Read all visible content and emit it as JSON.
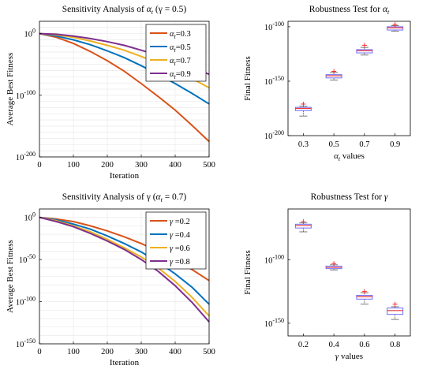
{
  "figure": {
    "colors": {
      "orange": "#d95319",
      "blue": "#0072bd",
      "yellow": "#edb120",
      "purple": "#7e2f8e",
      "box": "#6f6fff",
      "median": "#e8353f",
      "outlier": "#ff2a2a",
      "whisker": "#555555"
    }
  },
  "chart_data": [
    {
      "type": "line",
      "title_prefix": "Sensitivity Analysis of ",
      "title_symbol": "α",
      "title_sub": "t",
      "title_suffix": " (γ = 0.5)",
      "xlabel": "Iteration",
      "ylabel": "Average Best Fitness",
      "xlim": [
        0,
        500
      ],
      "xticks": [
        0,
        100,
        200,
        300,
        400,
        500
      ],
      "ylog": true,
      "ylim_exp": [
        -200,
        20
      ],
      "yticks_exp": [
        0,
        -100,
        -200
      ],
      "grid": true,
      "legend_position": "top-right",
      "x": [
        0,
        50,
        100,
        150,
        200,
        250,
        300,
        350,
        400,
        450,
        500
      ],
      "series": [
        {
          "symbol": "α",
          "sub": "t",
          "value": "=0.3",
          "color_key": "orange",
          "log10_values": [
            0,
            -6,
            -16,
            -29,
            -44,
            -61,
            -81,
            -102,
            -124,
            -149,
            -175
          ]
        },
        {
          "symbol": "α",
          "sub": "t",
          "value": "=0.5",
          "color_key": "blue",
          "log10_values": [
            0,
            -4,
            -10,
            -18,
            -28,
            -39,
            -52,
            -66,
            -81,
            -97,
            -114
          ]
        },
        {
          "symbol": "α",
          "sub": "t",
          "value": "=0.7",
          "color_key": "yellow",
          "log10_values": [
            0,
            -2,
            -6,
            -12,
            -19,
            -27,
            -37,
            -48,
            -60,
            -73,
            -88
          ]
        },
        {
          "symbol": "α",
          "sub": "t",
          "value": "=0.9",
          "color_key": "purple",
          "log10_values": [
            0,
            -1,
            -4,
            -8,
            -13,
            -19,
            -27,
            -35,
            -44,
            -55,
            -66
          ]
        }
      ]
    },
    {
      "type": "box",
      "title_prefix": "Robustness Test for ",
      "title_symbol": "α",
      "title_sub": "t",
      "title_suffix": "",
      "xlabel_symbol": "α",
      "xlabel_sub": "t",
      "xlabel_suffix": " values",
      "ylabel": "Final Fitness",
      "ylog": true,
      "ylim_exp": [
        -200,
        -95
      ],
      "yticks_exp": [
        -100,
        -150,
        -200
      ],
      "categories": [
        "0.3",
        "0.5",
        "0.7",
        "0.9"
      ],
      "boxes": [
        {
          "median": -175,
          "q1": -177,
          "q3": -174,
          "wlo": -182,
          "whi": -173,
          "outliers": [
            -171
          ]
        },
        {
          "median": -145,
          "q1": -147,
          "q3": -144,
          "wlo": -149,
          "whi": -142,
          "outliers": [
            -141
          ]
        },
        {
          "median": -122,
          "q1": -124,
          "q3": -121,
          "wlo": -126,
          "whi": -119,
          "outliers": [
            -117
          ]
        },
        {
          "median": -101,
          "q1": -103,
          "q3": -100,
          "wlo": -104,
          "whi": -99,
          "outliers": [
            -98
          ]
        }
      ]
    },
    {
      "type": "line",
      "title_prefix": "Sensitivity Analysis of γ (",
      "title_symbol": "α",
      "title_sub": "t",
      "title_suffix": " = 0.7)",
      "xlabel": "Iteration",
      "ylabel": "Average Best Fitness",
      "xlim": [
        0,
        500
      ],
      "xticks": [
        0,
        100,
        200,
        300,
        400,
        500
      ],
      "ylog": true,
      "ylim_exp": [
        -150,
        10
      ],
      "yticks_exp": [
        0,
        -50,
        -100,
        -150
      ],
      "grid": true,
      "legend_position": "top-right",
      "x": [
        0,
        50,
        100,
        150,
        200,
        250,
        300,
        350,
        400,
        450,
        500
      ],
      "series": [
        {
          "symbol": "γ",
          "sub": "",
          "value": " =0.2",
          "color_key": "orange",
          "log10_values": [
            0,
            -2,
            -5,
            -10,
            -16,
            -23,
            -31,
            -40,
            -51,
            -62,
            -75
          ]
        },
        {
          "symbol": "γ",
          "sub": "",
          "value": " =0.4",
          "color_key": "blue",
          "log10_values": [
            0,
            -3,
            -8,
            -14,
            -22,
            -31,
            -41,
            -53,
            -67,
            -83,
            -103
          ]
        },
        {
          "symbol": "γ",
          "sub": "",
          "value": " =0.6",
          "color_key": "yellow",
          "log10_values": [
            0,
            -4,
            -10,
            -17,
            -26,
            -36,
            -47,
            -60,
            -76,
            -95,
            -117
          ]
        },
        {
          "symbol": "γ",
          "sub": "",
          "value": " =0.8",
          "color_key": "purple",
          "log10_values": [
            0,
            -5,
            -11,
            -19,
            -28,
            -38,
            -50,
            -64,
            -81,
            -101,
            -124
          ]
        }
      ]
    },
    {
      "type": "box",
      "title_prefix": "Robustness Test for ",
      "title_symbol": "γ",
      "title_sub": "",
      "title_suffix": "",
      "xlabel_symbol": "γ",
      "xlabel_sub": "",
      "xlabel_suffix": " values",
      "ylabel": "Final Fitness",
      "ylog": true,
      "ylim_exp": [
        -160,
        -60
      ],
      "yticks_exp": [
        -100,
        -150
      ],
      "categories": [
        "0.2",
        "0.4",
        "0.6",
        "0.8"
      ],
      "boxes": [
        {
          "median": -73,
          "q1": -75,
          "q3": -72,
          "wlo": -78,
          "whi": -71,
          "outliers": [
            -70
          ]
        },
        {
          "median": -106,
          "q1": -107,
          "q3": -105,
          "wlo": -108,
          "whi": -104,
          "outliers": [
            -103
          ]
        },
        {
          "median": -129,
          "q1": -131,
          "q3": -128,
          "wlo": -135,
          "whi": -126,
          "outliers": [
            -125
          ]
        },
        {
          "median": -140,
          "q1": -143,
          "q3": -138,
          "wlo": -147,
          "whi": -137,
          "outliers": [
            -135
          ]
        }
      ]
    }
  ]
}
